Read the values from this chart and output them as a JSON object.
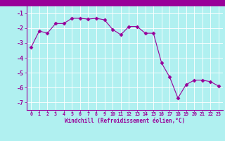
{
  "x": [
    0,
    1,
    2,
    3,
    4,
    5,
    6,
    7,
    8,
    9,
    10,
    11,
    12,
    13,
    14,
    15,
    16,
    17,
    18,
    19,
    20,
    21,
    22,
    23
  ],
  "y": [
    -3.3,
    -2.2,
    -2.35,
    -1.7,
    -1.7,
    -1.35,
    -1.35,
    -1.4,
    -1.35,
    -1.45,
    -2.1,
    -2.45,
    -1.9,
    -1.9,
    -2.35,
    -2.35,
    -4.35,
    -5.3,
    -6.7,
    -5.8,
    -5.5,
    -5.5,
    -5.6,
    -5.9
  ],
  "line_color": "#990099",
  "marker": "D",
  "marker_size": 2.5,
  "bg_color": "#b0f0f0",
  "grid_color": "#ffffff",
  "xlabel": "Windchill (Refroidissement éolien,°C)",
  "tick_color": "#990099",
  "xlim": [
    -0.5,
    23.5
  ],
  "ylim": [
    -7.5,
    -0.5
  ],
  "yticks": [
    -7,
    -6,
    -5,
    -4,
    -3,
    -2,
    -1
  ],
  "xticks": [
    0,
    1,
    2,
    3,
    4,
    5,
    6,
    7,
    8,
    9,
    10,
    11,
    12,
    13,
    14,
    15,
    16,
    17,
    18,
    19,
    20,
    21,
    22,
    23
  ],
  "spine_color": "#990099",
  "top_bar_color": "#990099",
  "top_bar_height": 0.04
}
